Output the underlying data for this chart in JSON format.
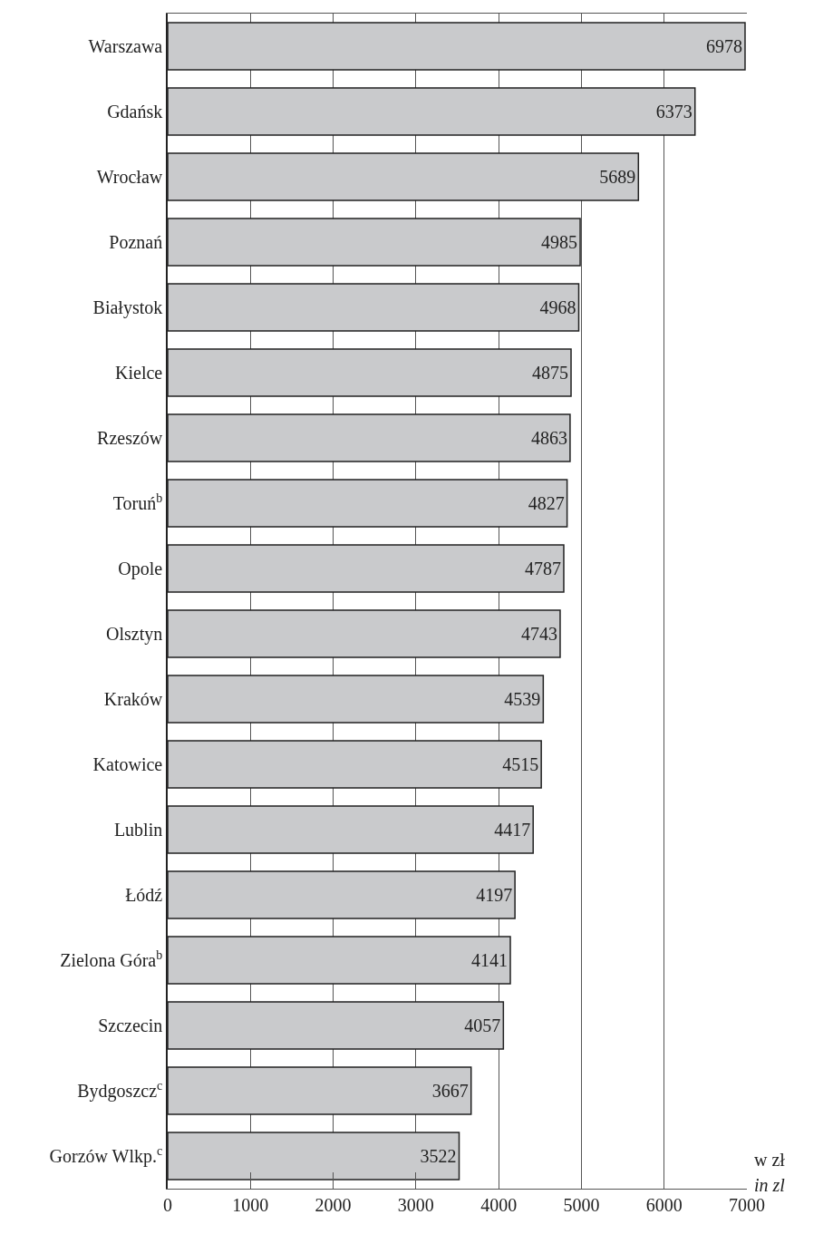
{
  "chart_data": {
    "type": "bar",
    "orientation": "horizontal",
    "categories": [
      "Warszawa",
      "Gdańsk",
      "Wrocław",
      "Poznań",
      "Białystok",
      "Kielce",
      "Rzeszów",
      "Toruń$^{b}$",
      "Opole",
      "Olsztyn",
      "Kraków",
      "Katowice",
      "Lublin",
      "Łódź",
      "Zielona Góra$^{b}$",
      "Szczecin",
      "Bydgoszcz$^{c}$",
      "Gorzów Wlkp.$^{c}$"
    ],
    "values": [
      6978,
      6373,
      5689,
      4985,
      4968,
      4875,
      4863,
      4827,
      4787,
      4743,
      4539,
      4515,
      4417,
      4197,
      4141,
      4057,
      3667,
      3522
    ],
    "color": "#c9cacc",
    "data_labels": true,
    "xlim": [
      0,
      7000
    ],
    "xticks": [
      0,
      1000,
      2000,
      3000,
      4000,
      5000,
      6000,
      7000
    ],
    "grid": "x",
    "annotations": [
      "w zł",
      "in zl"
    ]
  }
}
